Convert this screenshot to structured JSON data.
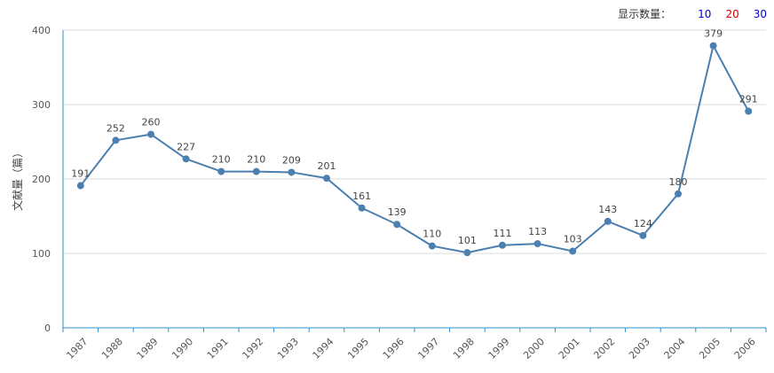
{
  "controls": {
    "label": "显示数量：",
    "options": [
      {
        "text": "10",
        "color": "#0000cc"
      },
      {
        "text": "20",
        "color": "#dd0000"
      },
      {
        "text": "30",
        "color": "#0000cc"
      }
    ]
  },
  "colors": {
    "line": "#4a7fb0",
    "axis": "#2b8fc8",
    "grid": "#dddddd"
  },
  "chart_data": {
    "type": "line",
    "ylabel": "文献量（篇）",
    "ylim": [
      0,
      400
    ],
    "yticks": [
      0,
      100,
      200,
      300,
      400
    ],
    "grid": true,
    "categories": [
      "1987",
      "1988",
      "1989",
      "1990",
      "1991",
      "1992",
      "1993",
      "1994",
      "1995",
      "1996",
      "1997",
      "1998",
      "1999",
      "2000",
      "2001",
      "2002",
      "2003",
      "2004",
      "2005",
      "2006"
    ],
    "series": [
      {
        "values": [
          191,
          252,
          260,
          227,
          210,
          210,
          209,
          201,
          161,
          139,
          110,
          101,
          111,
          113,
          103,
          143,
          124,
          180,
          379,
          291
        ]
      }
    ]
  }
}
